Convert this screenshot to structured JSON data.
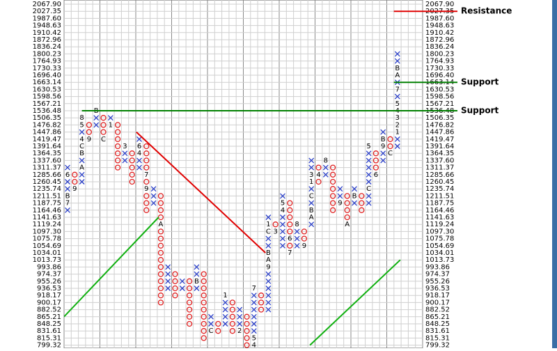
{
  "chart_data": {
    "type": "pnf",
    "x_color": "#2a3fc8",
    "o_color": "#e02020",
    "code_color": "#000000",
    "grid": true,
    "yticks": [
      {
        "value": 2067.9,
        "label": "2067.90"
      },
      2027.35,
      {
        "value": 1987.6,
        "label": "1987.60"
      },
      1948.63,
      1910.42,
      1872.96,
      1836.24,
      1800.23,
      1764.93,
      1730.33,
      {
        "value": 1696.4,
        "label": "1696.40"
      },
      1663.14,
      1630.53,
      1598.56,
      1567.21,
      1536.48,
      1506.35,
      1476.82,
      1447.86,
      1419.47,
      1391.64,
      1364.35,
      {
        "value": 1337.6,
        "label": "1337.60"
      },
      1311.37,
      1285.66,
      1260.45,
      1235.74,
      1211.51,
      1187.75,
      1164.46,
      1141.63,
      1119.24,
      {
        "value": 1097.3,
        "label": "1097.30"
      },
      1075.78,
      1054.69,
      1034.01,
      1013.73,
      993.86,
      974.37,
      955.26,
      936.53,
      918.17,
      900.17,
      882.52,
      865.21,
      848.25,
      831.61,
      815.31,
      799.32
    ],
    "columns": [
      {
        "box": "X",
        "top": 1311.37,
        "bottom": 1164.46,
        "codes": [
          {
            "price": 1285.66,
            "label": "6"
          },
          {
            "price": 1211.51,
            "label": "B"
          },
          {
            "price": 1187.75,
            "label": "7"
          }
        ]
      },
      {
        "box": "O",
        "top": 1285.66,
        "bottom": 1235.74,
        "codes": [
          {
            "price": 1235.74,
            "label": "9"
          }
        ]
      },
      {
        "box": "X",
        "top": 1506.35,
        "bottom": 1260.45,
        "codes": [
          {
            "price": 1506.35,
            "label": "8"
          },
          {
            "price": 1476.82,
            "label": "5"
          },
          {
            "price": 1419.47,
            "label": "4"
          },
          {
            "price": 1391.64,
            "label": "C"
          },
          {
            "price": 1364.35,
            "label": "B"
          },
          {
            "price": 1311.37,
            "label": "A"
          }
        ]
      },
      {
        "box": "O",
        "top": 1476.82,
        "bottom": 1419.47,
        "codes": [
          {
            "price": 1419.47,
            "label": "9"
          }
        ]
      },
      {
        "box": "X",
        "top": 1536.48,
        "bottom": 1476.82,
        "codes": [
          {
            "price": 1536.48,
            "label": "B"
          }
        ]
      },
      {
        "box": "O",
        "top": 1506.35,
        "bottom": 1419.47,
        "codes": [
          {
            "price": 1419.47,
            "label": "C"
          }
        ]
      },
      {
        "box": "X",
        "top": 1506.35,
        "bottom": 1476.82,
        "codes": [
          {
            "price": 1476.82,
            "label": "1"
          }
        ]
      },
      {
        "box": "O",
        "top": 1476.82,
        "bottom": 1311.37,
        "codes": []
      },
      {
        "box": "X",
        "top": 1391.64,
        "bottom": 1337.6,
        "codes": [
          {
            "price": 1391.64,
            "label": "3"
          }
        ]
      },
      {
        "box": "O",
        "top": 1364.35,
        "bottom": 1260.45,
        "codes": []
      },
      {
        "box": "X",
        "top": 1419.47,
        "bottom": 1311.37,
        "codes": [
          {
            "price": 1391.64,
            "label": "6"
          },
          {
            "price": 1364.35,
            "label": "4"
          }
        ]
      },
      {
        "box": "O",
        "top": 1391.64,
        "bottom": 1164.46,
        "codes": [
          {
            "price": 1285.66,
            "label": "7"
          },
          {
            "price": 1235.74,
            "label": "9"
          }
        ]
      },
      {
        "box": "X",
        "top": 1235.74,
        "bottom": 1187.75,
        "codes": []
      },
      {
        "box": "O",
        "top": 1211.51,
        "bottom": 900.17,
        "codes": [
          {
            "price": 1119.24,
            "label": "A"
          }
        ]
      },
      {
        "box": "X",
        "top": 993.86,
        "bottom": 936.53,
        "codes": []
      },
      {
        "box": "O",
        "top": 974.37,
        "bottom": 918.17,
        "codes": []
      },
      {
        "box": "X",
        "top": 955.26,
        "bottom": 936.53,
        "codes": []
      },
      {
        "box": "O",
        "top": 955.26,
        "bottom": 848.25,
        "codes": []
      },
      {
        "box": "X",
        "top": 993.86,
        "bottom": 936.53,
        "codes": [
          {
            "price": 955.26,
            "label": "B"
          }
        ]
      },
      {
        "box": "O",
        "top": 974.37,
        "bottom": 815.31,
        "codes": []
      },
      {
        "box": "X",
        "top": 865.21,
        "bottom": 831.61,
        "codes": [
          {
            "price": 831.61,
            "label": "C"
          }
        ]
      },
      {
        "box": "O",
        "top": 848.25,
        "bottom": 831.61,
        "codes": []
      },
      {
        "box": "X",
        "top": 918.17,
        "bottom": 848.25,
        "codes": [
          {
            "price": 918.17,
            "label": "1"
          }
        ]
      },
      {
        "box": "O",
        "top": 900.17,
        "bottom": 831.61,
        "codes": []
      },
      {
        "box": "X",
        "top": 882.52,
        "bottom": 831.61,
        "codes": [
          {
            "price": 831.61,
            "label": "2"
          }
        ]
      },
      {
        "box": "O",
        "top": 865.21,
        "bottom": 799.32,
        "codes": []
      },
      {
        "box": "X",
        "top": 936.53,
        "bottom": 799.32,
        "codes": [
          {
            "price": 936.53,
            "label": "7"
          },
          {
            "price": 815.31,
            "label": "5"
          },
          {
            "price": 799.32,
            "label": "4"
          }
        ]
      },
      {
        "box": "O",
        "top": 918.17,
        "bottom": 882.52,
        "codes": []
      },
      {
        "box": "X",
        "top": 1141.63,
        "bottom": 882.52,
        "codes": [
          {
            "price": 1119.24,
            "label": "1"
          },
          {
            "price": 1097.3,
            "label": "C"
          },
          {
            "price": 1034.01,
            "label": "B"
          },
          {
            "price": 1013.73,
            "label": "A"
          },
          {
            "price": 993.86,
            "label": "9"
          }
        ]
      },
      {
        "box": "O",
        "top": 1119.24,
        "bottom": 1097.3,
        "codes": [
          {
            "price": 1097.3,
            "label": "3"
          }
        ]
      },
      {
        "box": "X",
        "top": 1211.51,
        "bottom": 1054.69,
        "codes": [
          {
            "price": 1187.75,
            "label": "5"
          },
          {
            "price": 1164.46,
            "label": "4"
          }
        ]
      },
      {
        "box": "O",
        "top": 1187.75,
        "bottom": 1034.01,
        "codes": [
          {
            "price": 1075.78,
            "label": "6"
          },
          {
            "price": 1034.01,
            "label": "7"
          }
        ]
      },
      {
        "box": "X",
        "top": 1119.24,
        "bottom": 1054.69,
        "codes": [
          {
            "price": 1119.24,
            "label": "8"
          }
        ]
      },
      {
        "box": "O",
        "top": 1097.3,
        "bottom": 1054.69,
        "codes": [
          {
            "price": 1054.69,
            "label": "9"
          }
        ]
      },
      {
        "box": "X",
        "top": 1337.6,
        "bottom": 1119.24,
        "codes": [
          {
            "price": 1285.66,
            "label": "3"
          },
          {
            "price": 1260.45,
            "label": "1"
          },
          {
            "price": 1211.51,
            "label": "C"
          },
          {
            "price": 1164.46,
            "label": "B"
          },
          {
            "price": 1141.63,
            "label": "A"
          }
        ]
      },
      {
        "box": "O",
        "top": 1311.37,
        "bottom": 1260.45,
        "codes": [
          {
            "price": 1285.66,
            "label": "4"
          }
        ]
      },
      {
        "box": "X",
        "top": 1337.6,
        "bottom": 1285.66,
        "codes": [
          {
            "price": 1337.6,
            "label": "8"
          }
        ]
      },
      {
        "box": "O",
        "top": 1311.37,
        "bottom": 1164.46,
        "codes": []
      },
      {
        "box": "X",
        "top": 1235.74,
        "bottom": 1187.75,
        "codes": [
          {
            "price": 1187.75,
            "label": "9"
          }
        ]
      },
      {
        "box": "O",
        "top": 1211.51,
        "bottom": 1119.24,
        "codes": [
          {
            "price": 1119.24,
            "label": "A"
          }
        ]
      },
      {
        "box": "X",
        "top": 1235.74,
        "bottom": 1187.75,
        "codes": [
          {
            "price": 1211.51,
            "label": "B"
          }
        ]
      },
      {
        "box": "O",
        "top": 1211.51,
        "bottom": 1164.46,
        "codes": []
      },
      {
        "box": "X",
        "top": 1391.64,
        "bottom": 1187.75,
        "codes": [
          {
            "price": 1391.64,
            "label": "5"
          },
          {
            "price": 1235.74,
            "label": "C"
          }
        ]
      },
      {
        "box": "O",
        "top": 1364.35,
        "bottom": 1285.66,
        "codes": [
          {
            "price": 1285.66,
            "label": "6"
          }
        ]
      },
      {
        "box": "X",
        "top": 1447.86,
        "bottom": 1337.6,
        "codes": [
          {
            "price": 1419.47,
            "label": "B"
          },
          {
            "price": 1391.64,
            "label": "9"
          }
        ]
      },
      {
        "box": "O",
        "top": 1419.47,
        "bottom": 1364.35,
        "codes": [
          {
            "price": 1364.35,
            "label": "C"
          }
        ]
      },
      {
        "box": "X",
        "top": 1800.23,
        "bottom": 1391.64,
        "codes": [
          {
            "price": 1730.33,
            "label": "B"
          },
          {
            "price": 1696.4,
            "label": "A"
          },
          {
            "price": 1630.53,
            "label": "7"
          },
          {
            "price": 1567.21,
            "label": "5"
          },
          {
            "price": 1536.48,
            "label": "4"
          },
          {
            "price": 1506.35,
            "label": "3"
          },
          {
            "price": 1476.82,
            "label": "2"
          },
          {
            "price": 1447.86,
            "label": "1"
          }
        ]
      }
    ],
    "hlines": [
      {
        "label": "Resistance",
        "price": 2027.35,
        "color": "#e00000",
        "start": 45.5
      },
      {
        "label": "Support",
        "price": 1663.14,
        "color": "#008000",
        "start": 45.5
      },
      {
        "label": "Support",
        "price": 1536.48,
        "color": "#008000",
        "start": 2
      }
    ],
    "trendlines": [
      {
        "color": "#e00000",
        "cols": [
          9.6,
          27.6
        ],
        "prices": [
          1447.86,
          1034.01
        ]
      },
      {
        "color": "#10b010",
        "cols": [
          -0.5,
          12.7
        ],
        "prices": [
          865.21,
          1141.63
        ]
      },
      {
        "color": "#10b010",
        "cols": [
          33.8,
          46.4
        ],
        "prices": [
          799.32,
          1013.73
        ]
      }
    ]
  }
}
